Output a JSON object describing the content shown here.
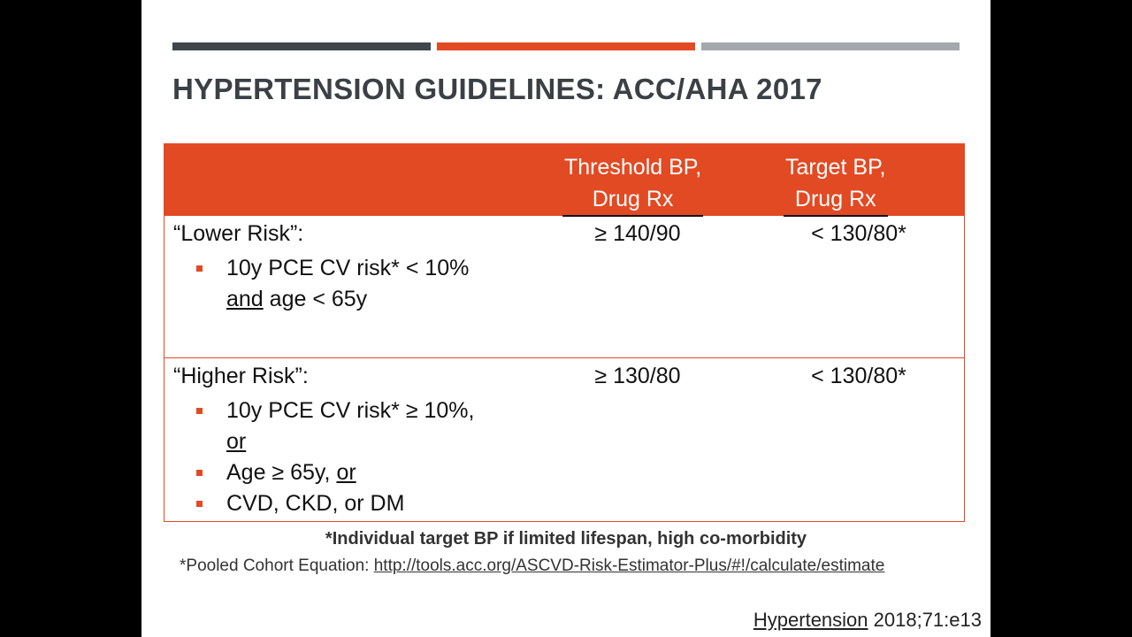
{
  "header": {
    "title": "HYPERTENSION GUIDELINES: ACC/AHA 2017"
  },
  "table": {
    "columns": [
      [
        "Threshold BP,",
        "Drug Rx"
      ],
      [
        "Target BP,",
        "Drug Rx"
      ]
    ],
    "rows": [
      {
        "label": "“Lower Risk”:",
        "bullets": [
          [
            [
              "10y PCE CV risk* < 10%"
            ],
            [
              {
                "text": "and",
                "underline": true
              },
              " age < 65y"
            ]
          ]
        ],
        "threshold": "≥ 140/90",
        "target": "< 130/80*"
      },
      {
        "label": "“Higher Risk”:",
        "bullets": [
          [
            [
              "10y PCE CV risk* ≥ 10%,"
            ],
            [
              {
                "text": "or",
                "underline": true
              }
            ]
          ],
          [
            [
              "Age ≥ 65y, ",
              {
                "text": "or",
                "underline": true
              }
            ]
          ],
          [
            [
              "CVD, CKD, or DM"
            ]
          ]
        ],
        "threshold": "≥ 130/80",
        "target": "< 130/80*"
      }
    ]
  },
  "footnotes": {
    "note": "*Individual target BP if limited lifespan, high co-morbidity",
    "pce_label": "*Pooled Cohort Equation: ",
    "pce_link": "http://tools.acc.org/ASCVD-Risk-Estimator-Plus/#!/calculate/estimate"
  },
  "citation": {
    "journal": "Hypertension",
    "reference": " 2018;71:e13"
  }
}
